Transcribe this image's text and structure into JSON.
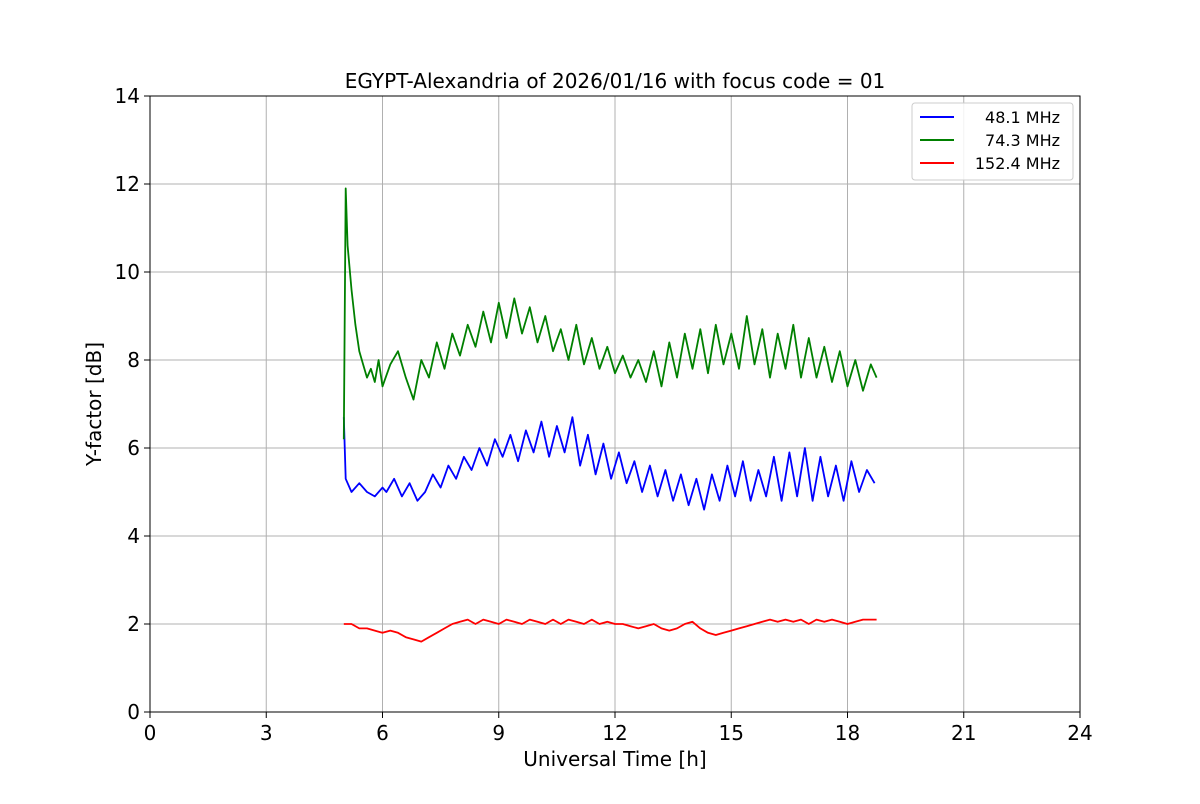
{
  "chart_data": {
    "type": "line",
    "title": "EGYPT-Alexandria of 2026/01/16 with focus code = 01",
    "xlabel": "Universal Time [h]",
    "ylabel": "Y-factor [dB]",
    "xlim": [
      0,
      24
    ],
    "ylim": [
      0,
      14
    ],
    "xticks": [
      0,
      3,
      6,
      9,
      12,
      15,
      18,
      21,
      24
    ],
    "yticks": [
      0,
      2,
      4,
      6,
      8,
      10,
      12,
      14
    ],
    "grid": true,
    "legend_position": "top-right",
    "series": [
      {
        "name": "48.1 MHz",
        "color": "#0000ff",
        "x": [
          5.0,
          5.05,
          5.2,
          5.4,
          5.6,
          5.8,
          6.0,
          6.1,
          6.3,
          6.5,
          6.7,
          6.9,
          7.1,
          7.3,
          7.5,
          7.7,
          7.9,
          8.1,
          8.3,
          8.5,
          8.7,
          8.9,
          9.1,
          9.3,
          9.5,
          9.7,
          9.9,
          10.1,
          10.3,
          10.5,
          10.7,
          10.9,
          11.1,
          11.3,
          11.5,
          11.7,
          11.9,
          12.1,
          12.3,
          12.5,
          12.7,
          12.9,
          13.1,
          13.3,
          13.5,
          13.7,
          13.9,
          14.1,
          14.3,
          14.5,
          14.7,
          14.9,
          15.1,
          15.3,
          15.5,
          15.7,
          15.9,
          16.1,
          16.3,
          16.5,
          16.7,
          16.9,
          17.1,
          17.3,
          17.5,
          17.7,
          17.9,
          18.1,
          18.3,
          18.5,
          18.7
        ],
        "y": [
          6.7,
          5.3,
          5.0,
          5.2,
          5.0,
          4.9,
          5.1,
          5.0,
          5.3,
          4.9,
          5.2,
          4.8,
          5.0,
          5.4,
          5.1,
          5.6,
          5.3,
          5.8,
          5.5,
          6.0,
          5.6,
          6.2,
          5.8,
          6.3,
          5.7,
          6.4,
          5.9,
          6.6,
          5.8,
          6.5,
          5.9,
          6.7,
          5.6,
          6.3,
          5.4,
          6.1,
          5.3,
          5.9,
          5.2,
          5.7,
          5.0,
          5.6,
          4.9,
          5.5,
          4.8,
          5.4,
          4.7,
          5.3,
          4.6,
          5.4,
          4.8,
          5.6,
          4.9,
          5.7,
          4.8,
          5.5,
          4.9,
          5.8,
          4.8,
          5.9,
          4.9,
          6.0,
          4.8,
          5.8,
          4.9,
          5.6,
          4.8,
          5.7,
          5.0,
          5.5,
          5.2
        ]
      },
      {
        "name": "74.3 MHz",
        "color": "#008000",
        "x": [
          5.0,
          5.05,
          5.1,
          5.2,
          5.3,
          5.4,
          5.5,
          5.6,
          5.7,
          5.8,
          5.9,
          6.0,
          6.2,
          6.4,
          6.6,
          6.8,
          7.0,
          7.2,
          7.4,
          7.6,
          7.8,
          8.0,
          8.2,
          8.4,
          8.6,
          8.8,
          9.0,
          9.2,
          9.4,
          9.6,
          9.8,
          10.0,
          10.2,
          10.4,
          10.6,
          10.8,
          11.0,
          11.2,
          11.4,
          11.6,
          11.8,
          12.0,
          12.2,
          12.4,
          12.6,
          12.8,
          13.0,
          13.2,
          13.4,
          13.6,
          13.8,
          14.0,
          14.2,
          14.4,
          14.6,
          14.8,
          15.0,
          15.2,
          15.4,
          15.6,
          15.8,
          16.0,
          16.2,
          16.4,
          16.6,
          16.8,
          17.0,
          17.2,
          17.4,
          17.6,
          17.8,
          18.0,
          18.2,
          18.4,
          18.6,
          18.75
        ],
        "y": [
          6.2,
          11.9,
          10.6,
          9.6,
          8.8,
          8.2,
          7.9,
          7.6,
          7.8,
          7.5,
          8.0,
          7.4,
          7.9,
          8.2,
          7.6,
          7.1,
          8.0,
          7.6,
          8.4,
          7.8,
          8.6,
          8.1,
          8.8,
          8.3,
          9.1,
          8.4,
          9.3,
          8.5,
          9.4,
          8.6,
          9.2,
          8.4,
          9.0,
          8.2,
          8.7,
          8.0,
          8.8,
          7.9,
          8.5,
          7.8,
          8.3,
          7.7,
          8.1,
          7.6,
          8.0,
          7.5,
          8.2,
          7.4,
          8.4,
          7.6,
          8.6,
          7.8,
          8.7,
          7.7,
          8.8,
          7.9,
          8.6,
          7.8,
          9.0,
          7.9,
          8.7,
          7.6,
          8.6,
          7.8,
          8.8,
          7.6,
          8.5,
          7.6,
          8.3,
          7.5,
          8.2,
          7.4,
          8.0,
          7.3,
          7.9,
          7.6
        ]
      },
      {
        "name": "152.4 MHz",
        "color": "#ff0000",
        "x": [
          5.0,
          5.2,
          5.4,
          5.6,
          5.8,
          6.0,
          6.2,
          6.4,
          6.6,
          6.8,
          7.0,
          7.2,
          7.4,
          7.6,
          7.8,
          8.0,
          8.2,
          8.4,
          8.6,
          8.8,
          9.0,
          9.2,
          9.4,
          9.6,
          9.8,
          10.0,
          10.2,
          10.4,
          10.6,
          10.8,
          11.0,
          11.2,
          11.4,
          11.6,
          11.8,
          12.0,
          12.2,
          12.4,
          12.6,
          12.8,
          13.0,
          13.2,
          13.4,
          13.6,
          13.8,
          14.0,
          14.2,
          14.4,
          14.6,
          14.8,
          15.0,
          15.2,
          15.4,
          15.6,
          15.8,
          16.0,
          16.2,
          16.4,
          16.6,
          16.8,
          17.0,
          17.2,
          17.4,
          17.6,
          17.8,
          18.0,
          18.2,
          18.4,
          18.6,
          18.75
        ],
        "y": [
          2.0,
          2.0,
          1.9,
          1.9,
          1.85,
          1.8,
          1.85,
          1.8,
          1.7,
          1.65,
          1.6,
          1.7,
          1.8,
          1.9,
          2.0,
          2.05,
          2.1,
          2.0,
          2.1,
          2.05,
          2.0,
          2.1,
          2.05,
          2.0,
          2.1,
          2.05,
          2.0,
          2.1,
          2.0,
          2.1,
          2.05,
          2.0,
          2.1,
          2.0,
          2.05,
          2.0,
          2.0,
          1.95,
          1.9,
          1.95,
          2.0,
          1.9,
          1.85,
          1.9,
          2.0,
          2.05,
          1.9,
          1.8,
          1.75,
          1.8,
          1.85,
          1.9,
          1.95,
          2.0,
          2.05,
          2.1,
          2.05,
          2.1,
          2.05,
          2.1,
          2.0,
          2.1,
          2.05,
          2.1,
          2.05,
          2.0,
          2.05,
          2.1,
          2.1,
          2.1
        ]
      }
    ]
  }
}
